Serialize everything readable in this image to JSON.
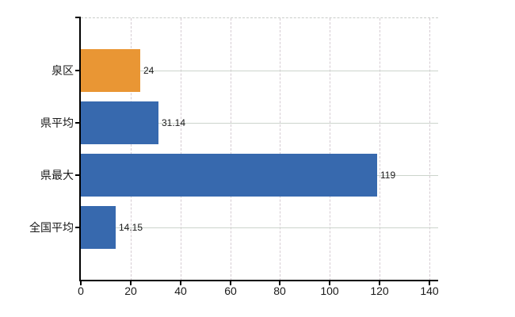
{
  "chart_data": {
    "type": "bar",
    "orientation": "horizontal",
    "title": "",
    "categories": [
      "泉区",
      "県平均",
      "県最大",
      "全国平均"
    ],
    "values": [
      24,
      31.14,
      119,
      14.15
    ],
    "value_labels": [
      "24",
      "31.14",
      "119",
      "14.15"
    ],
    "series_colors": [
      "#e99634",
      "#3769ae",
      "#3769ae",
      "#3769ae"
    ],
    "highlighted_category": "泉区",
    "x_ticks": [
      0,
      20,
      40,
      60,
      80,
      100,
      120,
      140
    ],
    "x_tick_labels": [
      "0",
      "20",
      "40",
      "60",
      "80",
      "100",
      "120",
      "140"
    ],
    "xlim": [
      0,
      143.3
    ],
    "ylabel": "",
    "xlabel": "",
    "grid": {
      "vertical": "dashed",
      "horizontal": "solid",
      "top_border": "dashed"
    },
    "legend_position": "none"
  },
  "colors": {
    "bar_highlight": "#e99634",
    "bar_default": "#3769ae",
    "grid_horizontal": "#ccd4cc",
    "grid_vertical": "#d5cbd2",
    "plot_top_border": "#c9cdc9",
    "axis_line": "#000000",
    "label_text": "#1a1a1a",
    "background": "#ffffff"
  }
}
